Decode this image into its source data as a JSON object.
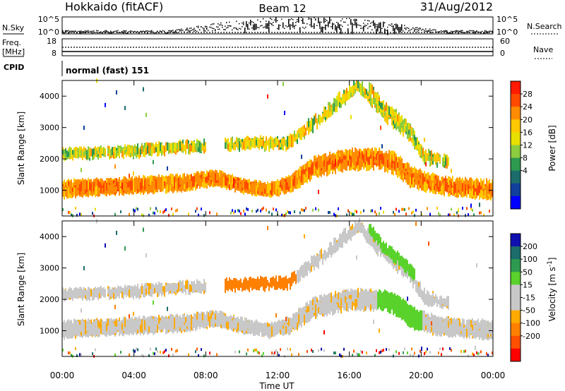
{
  "header": {
    "station": "Hokkaido (fitACF)",
    "beam": "Beam 12",
    "date": "31/Aug/2012"
  },
  "nsky_panel": {
    "left_label": "N.Sky",
    "right_label": "N.Search",
    "left_ticks": [
      "10^5",
      "10^0"
    ],
    "right_ticks": [
      "10^5",
      "10^0"
    ]
  },
  "freq_panel": {
    "left_label_top": "Freq.",
    "left_label_bottom": "[MHz]",
    "right_label": "Nave",
    "left_ticks": [
      "18",
      "8"
    ],
    "right_ticks": [
      "60",
      "0"
    ]
  },
  "cpid_panel": {
    "label": "CPID",
    "value": "normal (fast) 151"
  },
  "power_panel": {
    "ylabel": "Slant Range [km]",
    "colorbar_label": "Power [dB]",
    "colorbar_ticks": [
      "28",
      "24",
      "20",
      "16",
      "12",
      "8",
      "4"
    ],
    "colorbar_colors": [
      "#ff1a00",
      "#ff4a00",
      "#ff8c00",
      "#ffc800",
      "#e8e000",
      "#8ccc40",
      "#2e9a50",
      "#1c6c6c",
      "#10409c",
      "#0000ff"
    ]
  },
  "velocity_panel": {
    "ylabel": "Slant Range [km]",
    "colorbar_label": "Velocity [m s^-1]",
    "colorbar_ticks": [
      "200",
      "100",
      "50",
      "15",
      "-15",
      "-50",
      "-100",
      "-200"
    ],
    "colorbar_colors": [
      "#1010b0",
      "#1c6c6c",
      "#2e9a50",
      "#5ad22c",
      "#c8c8c8",
      "#c8c8c8",
      "#ffaa00",
      "#ff8000",
      "#ff5000",
      "#ff0000"
    ]
  },
  "xaxis": {
    "label": "Time UT",
    "ticks": [
      "00:00",
      "04:00",
      "08:00",
      "12:00",
      "16:00",
      "20:00",
      "00:00"
    ]
  },
  "chart_data": {
    "type": "heatmap",
    "title": "Hokkaido (fitACF)",
    "subtitle": "Beam 12",
    "date": "31/Aug/2012",
    "xlabel": "Time UT",
    "ylabel": "Slant Range [km]",
    "xlim_hours": [
      0,
      24
    ],
    "ylim_km": [
      180,
      4500
    ],
    "yticks_km": [
      1000,
      2000,
      3000,
      4000
    ],
    "xticks_hours": [
      0,
      4,
      8,
      12,
      16,
      20,
      24
    ],
    "power_range_db": [
      0,
      30
    ],
    "velocity_range_ms": [
      -250,
      250
    ],
    "echo_bands": [
      {
        "name": "main",
        "points": [
          [
            0,
            1050,
            350
          ],
          [
            4,
            1150,
            300
          ],
          [
            7,
            1250,
            300
          ],
          [
            8.5,
            1400,
            260
          ],
          [
            10,
            1150,
            240
          ],
          [
            11.5,
            1000,
            200
          ],
          [
            12.7,
            1200,
            320
          ],
          [
            14,
            1750,
            450
          ],
          [
            16,
            1980,
            450
          ],
          [
            17.5,
            2000,
            450
          ],
          [
            18.5,
            1850,
            480
          ],
          [
            19.5,
            1400,
            450
          ],
          [
            21,
            1150,
            380
          ],
          [
            24,
            1000,
            380
          ]
        ]
      },
      {
        "name": "upper_arc",
        "points": [
          [
            9,
            2450,
            250
          ],
          [
            10.5,
            2500,
            200
          ],
          [
            12.5,
            2500,
            240
          ],
          [
            14,
            3150,
            300
          ],
          [
            15.5,
            3900,
            280
          ],
          [
            16.5,
            4350,
            200
          ],
          [
            17.5,
            3700,
            280
          ],
          [
            18.3,
            3250,
            220
          ],
          [
            19.3,
            2800,
            220
          ],
          [
            20.2,
            2050,
            250
          ],
          [
            21.5,
            1900,
            150
          ]
        ]
      },
      {
        "name": "late_arc",
        "points": [
          [
            17,
            4350,
            150
          ],
          [
            17.8,
            3700,
            180
          ],
          [
            18.8,
            3250,
            180
          ],
          [
            19.6,
            2800,
            200
          ]
        ]
      },
      {
        "name": "morning_upper",
        "points": [
          [
            0,
            2150,
            160
          ],
          [
            2,
            2200,
            160
          ],
          [
            4,
            2250,
            180
          ],
          [
            6,
            2350,
            200
          ],
          [
            8,
            2420,
            180
          ]
        ]
      }
    ],
    "nsky_log_range": [
      0,
      5
    ],
    "freq_mhz": {
      "range": [
        8,
        18
      ],
      "value": 10
    },
    "nave": {
      "range": [
        0,
        60
      ],
      "value": 30
    },
    "cpid": 151
  }
}
